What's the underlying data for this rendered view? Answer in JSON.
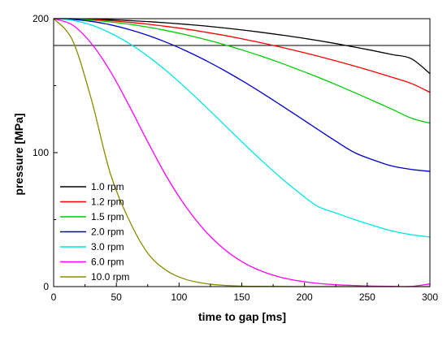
{
  "chart_data": {
    "type": "line",
    "title": "",
    "xlabel": "time to gap [ms]",
    "ylabel": "pressure [MPa]",
    "xlim": [
      0,
      300
    ],
    "ylim": [
      0,
      200
    ],
    "x_ticks": [
      0,
      50,
      100,
      150,
      200,
      250,
      300
    ],
    "y_ticks": [
      0,
      100,
      200
    ],
    "grid": false,
    "legend_position": "bottom-left",
    "reference_lines": [
      {
        "orientation": "horizontal",
        "y": 180,
        "color": "#000000"
      }
    ],
    "x": [
      0,
      15,
      30,
      45,
      60,
      75,
      90,
      105,
      120,
      135,
      150,
      165,
      180,
      195,
      210,
      225,
      240,
      255,
      270,
      285,
      300
    ],
    "series": [
      {
        "name": "1.0 rpm",
        "color": "#000000",
        "values": [
          200,
          200,
          199.6,
          199.2,
          198.6,
          197.8,
          196.9,
          195.8,
          194.6,
          193.2,
          191.6,
          189.9,
          188.0,
          186.0,
          183.8,
          181.4,
          178.8,
          176.1,
          173.2,
          170.2,
          159
        ]
      },
      {
        "name": "1.2 rpm",
        "color": "#ff0000",
        "values": [
          200,
          199.8,
          199.3,
          198.5,
          197.3,
          195.9,
          194.2,
          192.3,
          190.1,
          187.7,
          185.0,
          182.1,
          179.0,
          175.7,
          172.2,
          168.5,
          164.6,
          160.5,
          156.2,
          151.7,
          145
        ]
      },
      {
        "name": "1.5 rpm",
        "color": "#00cc00",
        "values": [
          200,
          199.7,
          198.9,
          197.6,
          195.9,
          193.7,
          191.1,
          188.1,
          184.7,
          180.9,
          176.7,
          172.2,
          167.3,
          162.0,
          156.6,
          150.8,
          144.8,
          138.6,
          132.3,
          125.8,
          122
        ]
      },
      {
        "name": "2.0 rpm",
        "color": "#0000cc",
        "values": [
          200,
          199.5,
          198.0,
          195.5,
          192.0,
          187.6,
          182.3,
          176.2,
          169.4,
          161.9,
          153.8,
          145.2,
          136.2,
          127.0,
          117.7,
          108.5,
          100.0,
          94.5,
          90.0,
          87.5,
          86
        ]
      },
      {
        "name": "3.0 rpm",
        "color": "#00e5e5",
        "values": [
          200,
          198.8,
          195.3,
          189.4,
          181.6,
          172.1,
          161.0,
          148.6,
          135.4,
          121.8,
          108.1,
          94.8,
          82.2,
          70.6,
          60.2,
          55.0,
          50.0,
          45.5,
          41.5,
          38.8,
          37
        ]
      },
      {
        "name": "6.0 rpm",
        "color": "#ff00ff",
        "values": [
          200,
          195.3,
          181.6,
          161.0,
          135.4,
          108.1,
          82.2,
          60.2,
          42.4,
          28.7,
          18.7,
          11.8,
          7.2,
          4.3,
          2.5,
          1.4,
          0.8,
          0.4,
          0.2,
          0.1,
          2
        ]
      },
      {
        "name": "10.0 rpm",
        "color": "#8b8b00",
        "values": [
          200,
          183.9,
          140.0,
          85.0,
          50.0,
          25.0,
          12.0,
          5.5,
          2.4,
          1.0,
          0.4,
          0.2,
          0.1,
          0,
          0,
          0,
          0,
          0,
          0,
          0,
          0
        ]
      }
    ]
  }
}
